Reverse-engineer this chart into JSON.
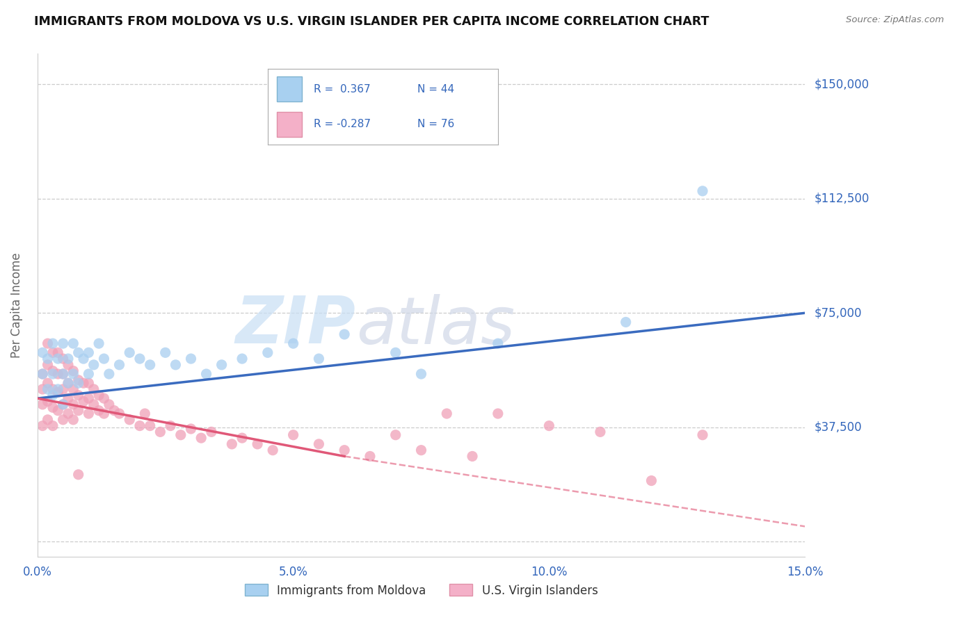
{
  "title": "IMMIGRANTS FROM MOLDOVA VS U.S. VIRGIN ISLANDER PER CAPITA INCOME CORRELATION CHART",
  "source": "Source: ZipAtlas.com",
  "watermark_zip": "ZIP",
  "watermark_atlas": "atlas",
  "ylabel": "Per Capita Income",
  "xlim": [
    0.0,
    0.15
  ],
  "ylim": [
    -5000,
    160000
  ],
  "yticks": [
    0,
    37500,
    75000,
    112500,
    150000
  ],
  "ytick_labels": [
    "",
    "$37,500",
    "$75,000",
    "$112,500",
    "$150,000"
  ],
  "xticks": [
    0.0,
    0.05,
    0.1,
    0.15
  ],
  "xtick_labels": [
    "0.0%",
    "5.0%",
    "10.0%",
    "15.0%"
  ],
  "blue_color": "#a8cef0",
  "blue_line_color": "#3a6bbf",
  "pink_color": "#f0a0b8",
  "pink_line_color": "#e05878",
  "title_color": "#111111",
  "axis_color": "#3366bb",
  "grid_color": "#cccccc",
  "background_color": "#ffffff",
  "legend_R1": "R =  0.367",
  "legend_N1": "N = 44",
  "legend_R2": "R = -0.287",
  "legend_N2": "N = 76",
  "blue_x": [
    0.001,
    0.001,
    0.002,
    0.002,
    0.003,
    0.003,
    0.003,
    0.004,
    0.004,
    0.005,
    0.005,
    0.005,
    0.006,
    0.006,
    0.007,
    0.007,
    0.008,
    0.008,
    0.009,
    0.01,
    0.01,
    0.011,
    0.012,
    0.013,
    0.014,
    0.016,
    0.018,
    0.02,
    0.022,
    0.025,
    0.027,
    0.03,
    0.033,
    0.036,
    0.04,
    0.045,
    0.05,
    0.055,
    0.06,
    0.07,
    0.075,
    0.09,
    0.115,
    0.13
  ],
  "blue_y": [
    62000,
    55000,
    60000,
    50000,
    65000,
    55000,
    48000,
    60000,
    50000,
    65000,
    55000,
    45000,
    60000,
    52000,
    65000,
    55000,
    62000,
    52000,
    60000,
    62000,
    55000,
    58000,
    65000,
    60000,
    55000,
    58000,
    62000,
    60000,
    58000,
    62000,
    58000,
    60000,
    55000,
    58000,
    60000,
    62000,
    65000,
    60000,
    68000,
    62000,
    55000,
    65000,
    72000,
    115000
  ],
  "pink_x": [
    0.001,
    0.001,
    0.001,
    0.001,
    0.002,
    0.002,
    0.002,
    0.002,
    0.002,
    0.003,
    0.003,
    0.003,
    0.003,
    0.003,
    0.004,
    0.004,
    0.004,
    0.004,
    0.005,
    0.005,
    0.005,
    0.005,
    0.005,
    0.006,
    0.006,
    0.006,
    0.006,
    0.007,
    0.007,
    0.007,
    0.007,
    0.008,
    0.008,
    0.008,
    0.009,
    0.009,
    0.01,
    0.01,
    0.01,
    0.011,
    0.011,
    0.012,
    0.012,
    0.013,
    0.013,
    0.014,
    0.015,
    0.016,
    0.018,
    0.02,
    0.021,
    0.022,
    0.024,
    0.026,
    0.028,
    0.03,
    0.032,
    0.034,
    0.038,
    0.04,
    0.043,
    0.046,
    0.05,
    0.055,
    0.06,
    0.065,
    0.07,
    0.075,
    0.08,
    0.085,
    0.09,
    0.1,
    0.11,
    0.12,
    0.13,
    0.008
  ],
  "pink_y": [
    55000,
    50000,
    45000,
    38000,
    65000,
    58000,
    52000,
    46000,
    40000,
    62000,
    56000,
    50000,
    44000,
    38000,
    62000,
    55000,
    49000,
    43000,
    60000,
    55000,
    50000,
    45000,
    40000,
    58000,
    52000,
    47000,
    42000,
    56000,
    50000,
    45000,
    40000,
    53000,
    48000,
    43000,
    52000,
    46000,
    52000,
    47000,
    42000,
    50000,
    45000,
    48000,
    43000,
    47000,
    42000,
    45000,
    43000,
    42000,
    40000,
    38000,
    42000,
    38000,
    36000,
    38000,
    35000,
    37000,
    34000,
    36000,
    32000,
    34000,
    32000,
    30000,
    35000,
    32000,
    30000,
    28000,
    35000,
    30000,
    42000,
    28000,
    42000,
    38000,
    36000,
    20000,
    35000,
    22000
  ]
}
